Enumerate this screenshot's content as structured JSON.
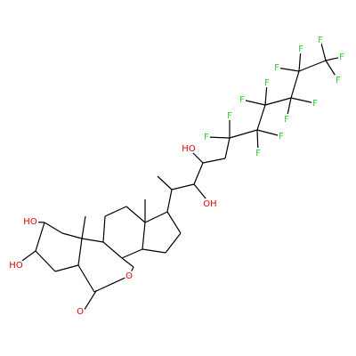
{
  "molecule": {
    "hydroxyl_labels": [
      "HO",
      "OH",
      "HO",
      "HO"
    ],
    "ring_oxygen_label": "O",
    "carbonyl_oxygen_label": "O",
    "fluorine_labels": [
      "F",
      "F",
      "F",
      "F",
      "F",
      "F",
      "F",
      "F",
      "F",
      "F",
      "F",
      "F",
      "F"
    ]
  }
}
